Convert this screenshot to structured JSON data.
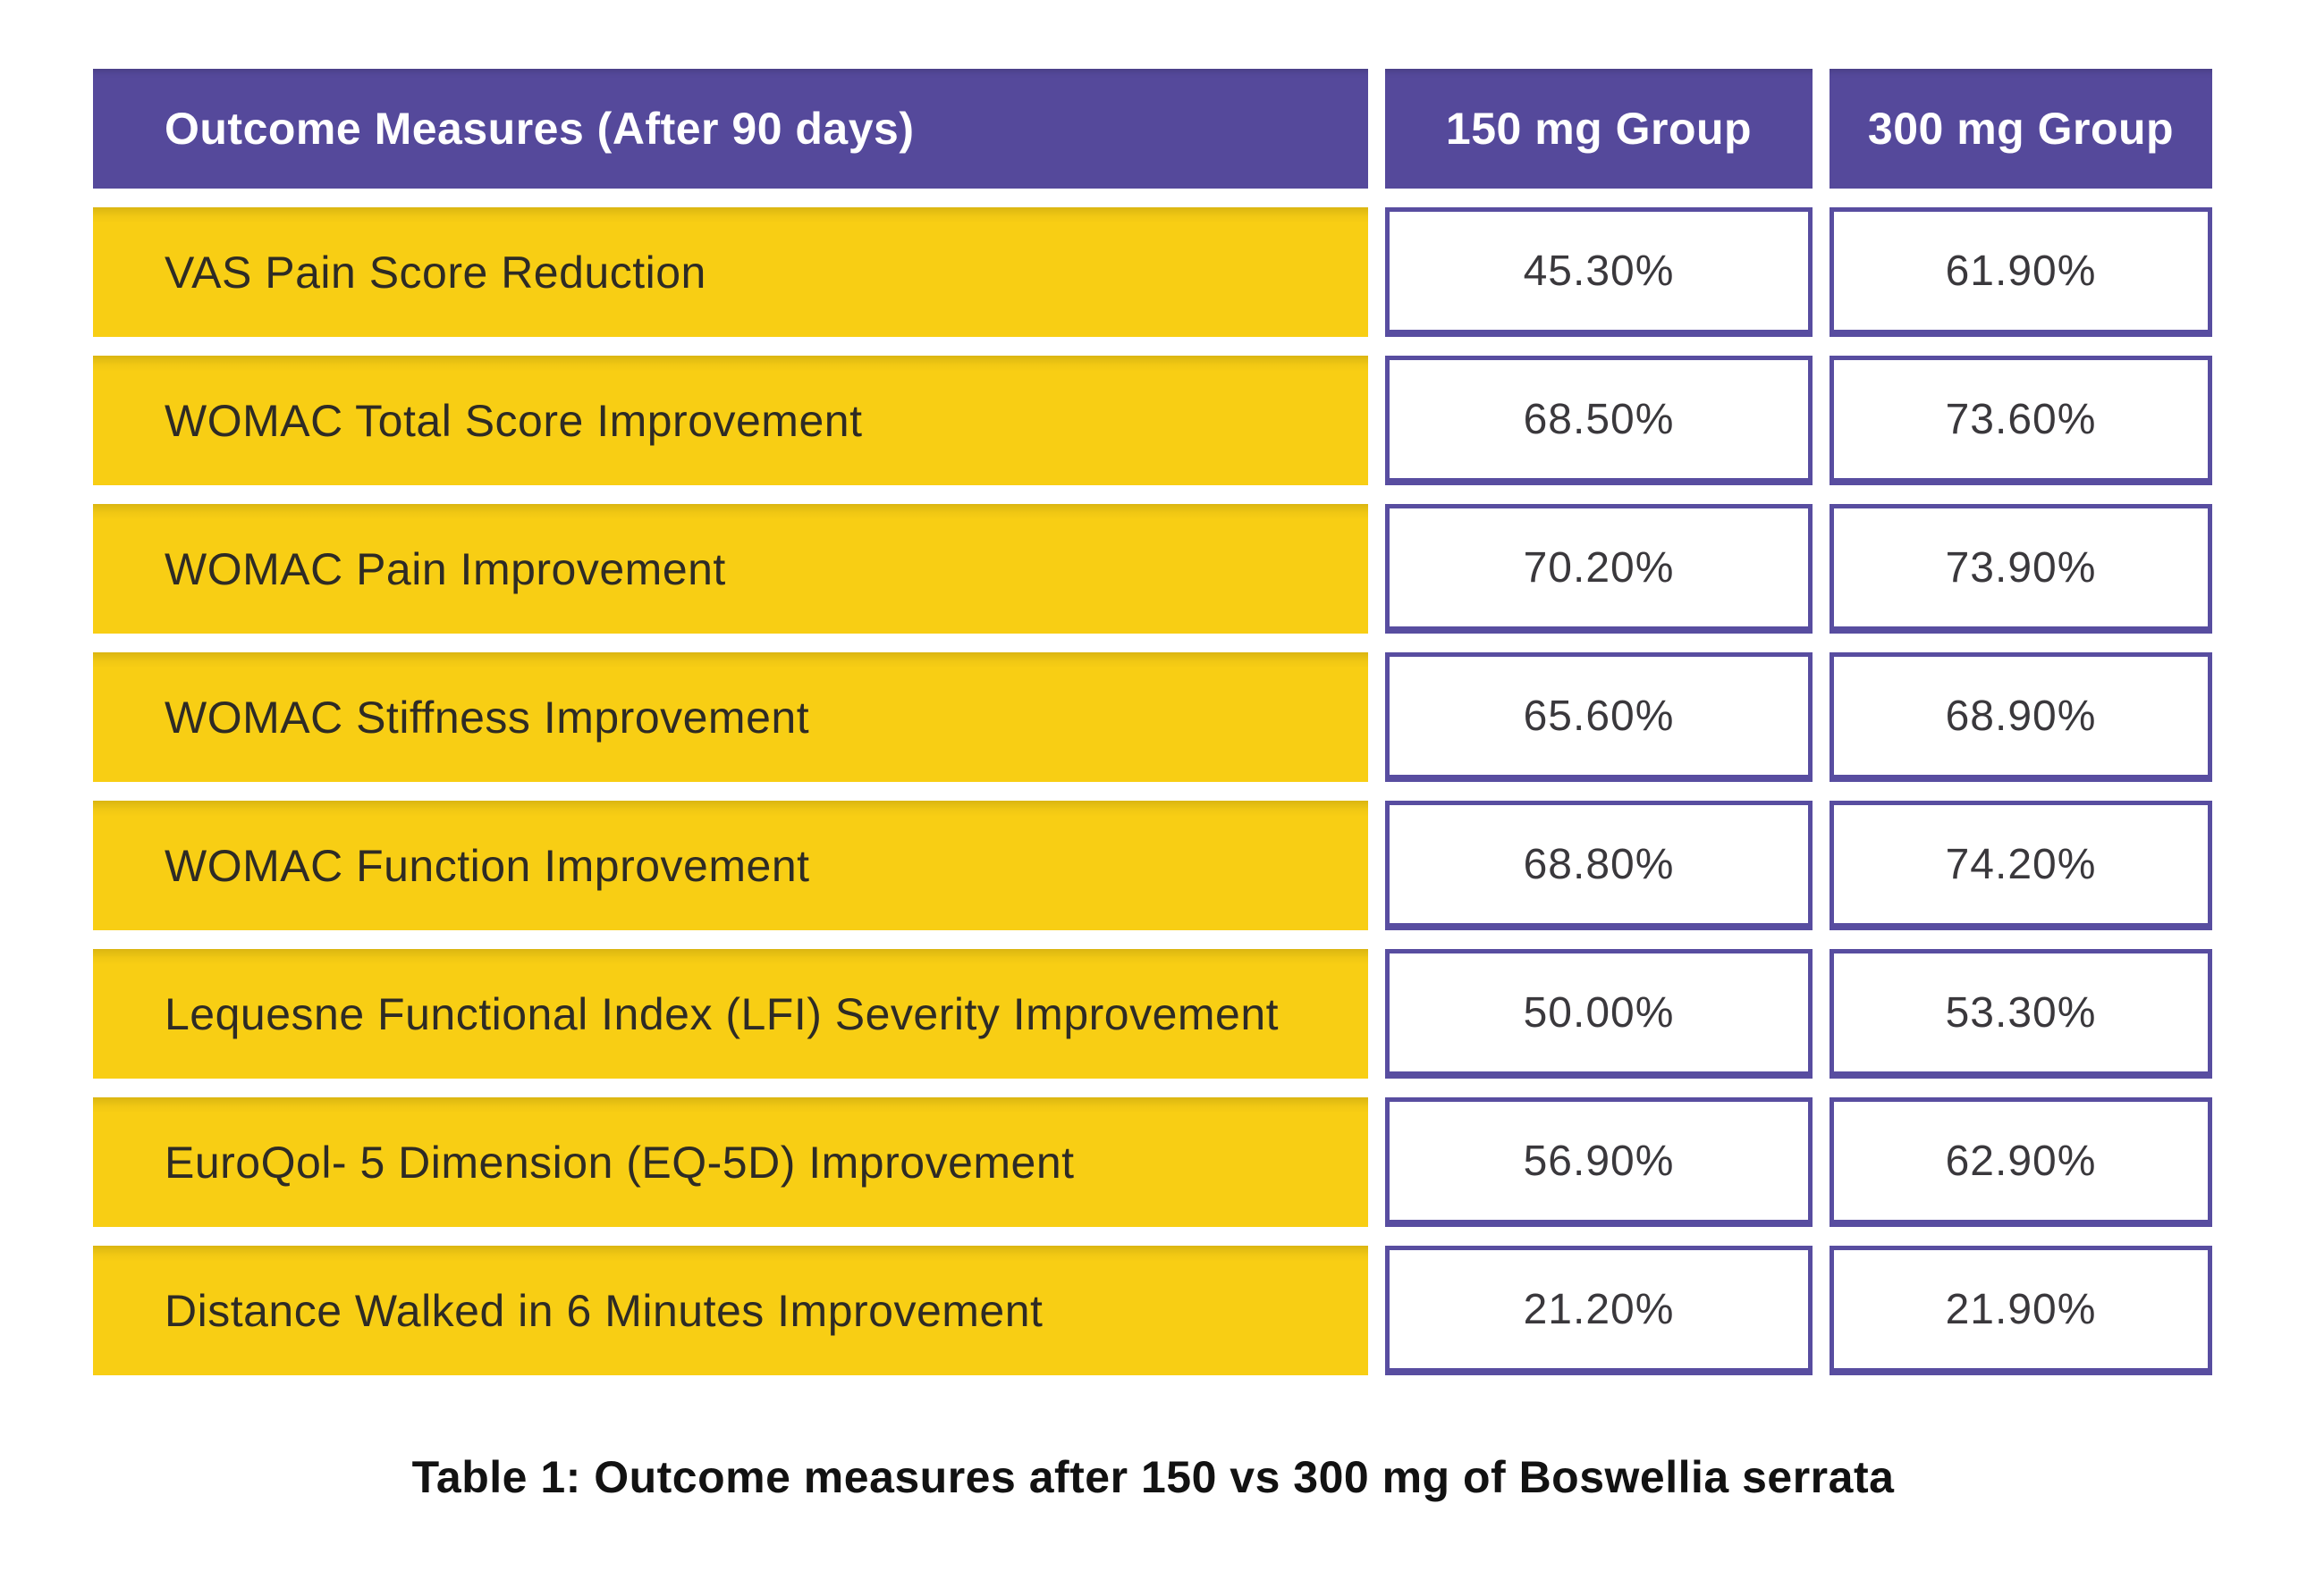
{
  "table": {
    "header": {
      "outcome": "Outcome Measures (After 90 days)",
      "group150": "150 mg Group",
      "group300": "300 mg Group"
    },
    "rows": [
      {
        "label": "VAS Pain Score Reduction",
        "v150": "45.30%",
        "v300": "61.90%"
      },
      {
        "label": "WOMAC Total Score Improvement",
        "v150": "68.50%",
        "v300": "73.60%"
      },
      {
        "label": "WOMAC Pain Improvement",
        "v150": "70.20%",
        "v300": "73.90%"
      },
      {
        "label": "WOMAC Stiffness Improvement",
        "v150": "65.60%",
        "v300": "68.90%"
      },
      {
        "label": "WOMAC Function Improvement",
        "v150": "68.80%",
        "v300": "74.20%"
      },
      {
        "label": "Lequesne Functional Index (LFI) Severity Improvement",
        "v150": "50.00%",
        "v300": "53.30%"
      },
      {
        "label": "EuroQol- 5 Dimension (EQ-5D) Improvement",
        "v150": "56.90%",
        "v300": "62.90%"
      },
      {
        "label": "Distance Walked in 6 Minutes Improvement",
        "v150": "21.20%",
        "v300": "21.90%"
      }
    ]
  },
  "caption": "Table 1: Outcome measures after 150 vs 300 mg of Boswellia serrata",
  "colors": {
    "header_purple": "#55499B",
    "row_yellow": "#F8CE14",
    "cell_border_purple": "#584DA0",
    "background": "#FFFFFF",
    "label_text": "#2E2B25",
    "value_text": "#3A383C"
  },
  "chart_data": {
    "type": "table",
    "title": "Table 1: Outcome measures after 150 vs 300 mg of Boswellia serrata",
    "columns": [
      "Outcome Measures (After 90 days)",
      "150 mg Group",
      "300 mg Group"
    ],
    "categories": [
      "VAS Pain Score Reduction",
      "WOMAC Total Score Improvement",
      "WOMAC Pain Improvement",
      "WOMAC Stiffness Improvement",
      "WOMAC Function Improvement",
      "Lequesne Functional Index (LFI) Severity Improvement",
      "EuroQol- 5 Dimension (EQ-5D) Improvement",
      "Distance Walked in 6 Minutes Improvement"
    ],
    "series": [
      {
        "name": "150 mg Group",
        "values": [
          45.3,
          68.5,
          70.2,
          65.6,
          68.8,
          50.0,
          56.9,
          21.2
        ]
      },
      {
        "name": "300 mg Group",
        "values": [
          61.9,
          73.6,
          73.9,
          68.9,
          74.2,
          53.3,
          62.9,
          21.9
        ]
      }
    ],
    "unit": "%"
  }
}
